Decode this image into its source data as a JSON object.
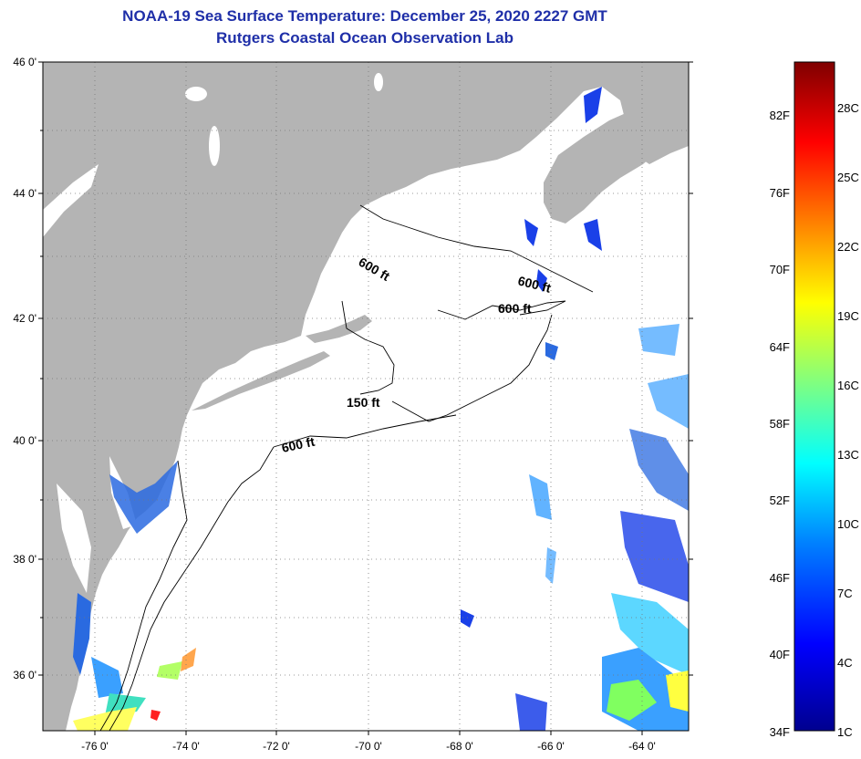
{
  "header": {
    "title_line1": "NOAA-19 Sea Surface Temperature:  December 25, 2020 2227 GMT",
    "title_line2": "Rutgers Coastal Ocean Observation Lab"
  },
  "map": {
    "lat_labels": [
      "46 0'",
      "44 0'",
      "42 0'",
      "40 0'",
      "38 0'",
      "36 0'"
    ],
    "lon_labels": [
      "-76 0'",
      "-74 0'",
      "-72 0'",
      "-70 0'",
      "-68 0'",
      "-66 0'",
      "-64 0'"
    ],
    "contours": [
      "600 ft",
      "600 ft",
      "600 ft",
      "150 ft",
      "600 ft"
    ],
    "colors": {
      "land": "#b4b4b4",
      "ocean": "#ffffff",
      "grid": "#888888"
    }
  },
  "colorbar": {
    "fahrenheit_labels": [
      "82F",
      "76F",
      "70F",
      "64F",
      "58F",
      "52F",
      "46F",
      "40F",
      "34F"
    ],
    "celsius_labels": [
      "28C",
      "25C",
      "22C",
      "19C",
      "16C",
      "13C",
      "10C",
      "7C",
      "4C",
      "1C"
    ],
    "colors": [
      "#7f0000",
      "#ff0000",
      "#ff8000",
      "#ffff00",
      "#80ff80",
      "#00ffff",
      "#0080ff",
      "#0000ff",
      "#00008f"
    ]
  }
}
